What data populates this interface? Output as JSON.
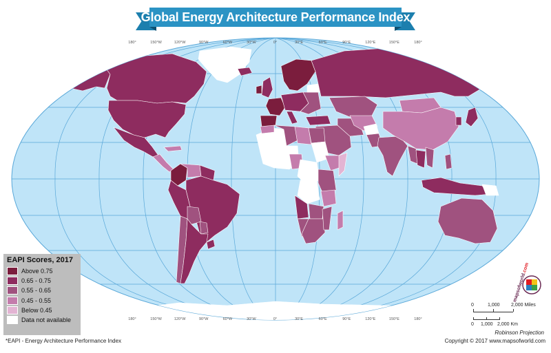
{
  "title": "Global Energy Architecture Performance Index",
  "colors": {
    "ocean": "#bfe4f8",
    "graticule": "#58a7d8",
    "tier1": "#7b1d3d",
    "tier2": "#8e2c5f",
    "tier3": "#a0527f",
    "tier4": "#c47cac",
    "tier5": "#e3b4d3",
    "no_data": "#ffffff",
    "legend_bg": "#bdbdbd",
    "ribbon": "#2b93c4"
  },
  "top_ticks": [
    "180°",
    "150°W",
    "120°W",
    "90°W",
    "60°W",
    "30°W",
    "0°",
    "30°E",
    "60°E",
    "90°E",
    "120°E",
    "150°E",
    "180°"
  ],
  "bottom_ticks": [
    "180°",
    "150°W",
    "120°W",
    "90°W",
    "60°W",
    "30°W",
    "0°",
    "30°E",
    "60°E",
    "90°E",
    "120°E",
    "150°E",
    "180°"
  ],
  "legend": {
    "title": "EAPI Scores, 2017",
    "items": [
      {
        "label": "Above 0.75",
        "color": "#7b1d3d"
      },
      {
        "label": "0.65 - 0.75",
        "color": "#8e2c5f"
      },
      {
        "label": "0.55 - 0.65",
        "color": "#a0527f"
      },
      {
        "label": "0.45 - 0.55",
        "color": "#c47cac"
      },
      {
        "label": "Below 0.45",
        "color": "#e3b4d3"
      },
      {
        "label": "Data not available",
        "color": "#ffffff"
      }
    ]
  },
  "scale": {
    "miles": [
      "0",
      "1,000",
      "2,000 Miles"
    ],
    "km": [
      "0",
      "1,000",
      "2,000 Km"
    ]
  },
  "projection": "Robinson Projection",
  "copyright": "Copyright © 2017 www.mapsofworld.com",
  "footnote": "*EAPI - Energy Architecture Performance Index",
  "logo": {
    "brand": "mapsofworld",
    "suffix": ".com"
  }
}
